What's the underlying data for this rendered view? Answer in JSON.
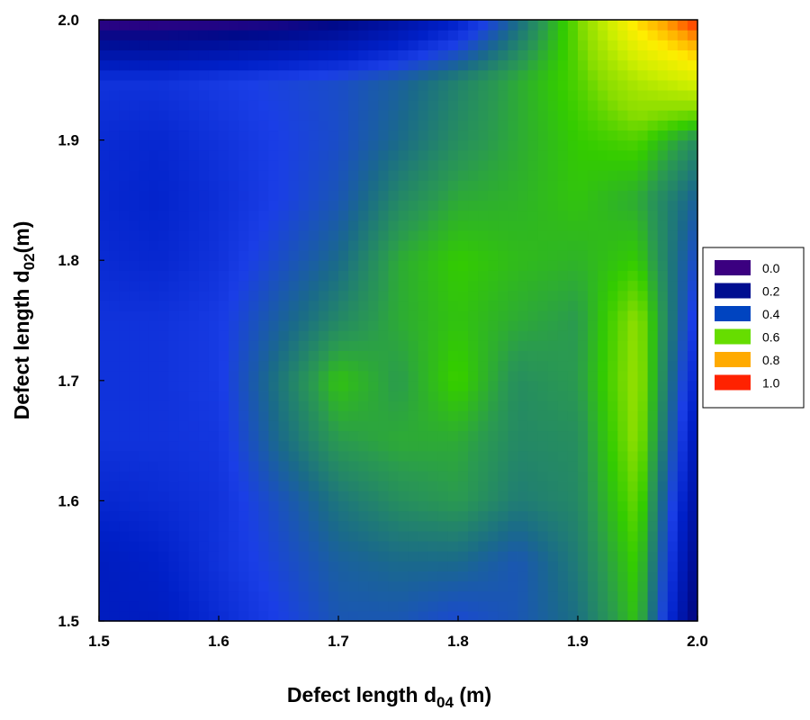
{
  "chart_data": {
    "type": "heatmap",
    "title": "",
    "xlabel": {
      "prefix": "Defect length d",
      "sub": "04",
      "suffix": " (m)"
    },
    "ylabel": {
      "prefix": "Defect length d",
      "sub": "02",
      "suffix": "(m)"
    },
    "xlim": [
      1.5,
      2.0
    ],
    "ylim": [
      1.5,
      2.0
    ],
    "x_ticks": [
      "1.5",
      "1.6",
      "1.7",
      "1.8",
      "1.9",
      "2.0"
    ],
    "y_ticks": [
      "1.5",
      "1.6",
      "1.7",
      "1.8",
      "1.9",
      "2.0"
    ],
    "x": [
      1.5,
      1.55,
      1.6,
      1.65,
      1.7,
      1.75,
      1.8,
      1.85,
      1.9,
      1.95,
      2.0
    ],
    "y": [
      1.5,
      1.55,
      1.6,
      1.65,
      1.7,
      1.75,
      1.8,
      1.85,
      1.9,
      1.95,
      2.0
    ],
    "z": [
      [
        0.23,
        0.23,
        0.28,
        0.33,
        0.38,
        0.38,
        0.35,
        0.38,
        0.43,
        0.55,
        0.05
      ],
      [
        0.23,
        0.25,
        0.3,
        0.35,
        0.4,
        0.42,
        0.42,
        0.38,
        0.45,
        0.57,
        0.1
      ],
      [
        0.27,
        0.28,
        0.3,
        0.37,
        0.44,
        0.48,
        0.5,
        0.45,
        0.47,
        0.6,
        0.15
      ],
      [
        0.3,
        0.3,
        0.31,
        0.42,
        0.5,
        0.52,
        0.52,
        0.47,
        0.48,
        0.63,
        0.2
      ],
      [
        0.3,
        0.3,
        0.32,
        0.44,
        0.55,
        0.5,
        0.57,
        0.48,
        0.5,
        0.64,
        0.25
      ],
      [
        0.3,
        0.3,
        0.32,
        0.4,
        0.47,
        0.52,
        0.55,
        0.52,
        0.5,
        0.63,
        0.3
      ],
      [
        0.28,
        0.27,
        0.3,
        0.36,
        0.42,
        0.52,
        0.56,
        0.54,
        0.53,
        0.56,
        0.35
      ],
      [
        0.27,
        0.26,
        0.29,
        0.33,
        0.38,
        0.47,
        0.52,
        0.53,
        0.55,
        0.52,
        0.4
      ],
      [
        0.28,
        0.27,
        0.3,
        0.33,
        0.36,
        0.42,
        0.48,
        0.52,
        0.56,
        0.58,
        0.48
      ],
      [
        0.3,
        0.3,
        0.32,
        0.34,
        0.36,
        0.4,
        0.46,
        0.52,
        0.58,
        0.68,
        0.75
      ],
      [
        0.01,
        0.01,
        0.02,
        0.04,
        0.08,
        0.15,
        0.25,
        0.42,
        0.6,
        0.85,
        1.0
      ]
    ],
    "levels": [
      {
        "label": "0.0",
        "color": "#3b0080"
      },
      {
        "label": "0.2",
        "color": "#000e90"
      },
      {
        "label": "0.4",
        "color": "#0044c0"
      },
      {
        "label": "0.6",
        "color": "#66dd00"
      },
      {
        "label": "0.8",
        "color": "#ffaa00"
      },
      {
        "label": "1.0",
        "color": "#ff2200"
      }
    ],
    "colorscale": [
      [
        0.0,
        "#3b0080"
      ],
      [
        0.1,
        "#000a8a"
      ],
      [
        0.25,
        "#0020c8"
      ],
      [
        0.33,
        "#1a3ee6"
      ],
      [
        0.42,
        "#1a6a8a"
      ],
      [
        0.5,
        "#2a9a50"
      ],
      [
        0.56,
        "#33cc00"
      ],
      [
        0.62,
        "#88dd00"
      ],
      [
        0.72,
        "#ccee00"
      ],
      [
        0.82,
        "#ffee00"
      ],
      [
        0.9,
        "#ffaa00"
      ],
      [
        1.0,
        "#ff2200"
      ]
    ],
    "legend_position": "right",
    "grid": false
  }
}
